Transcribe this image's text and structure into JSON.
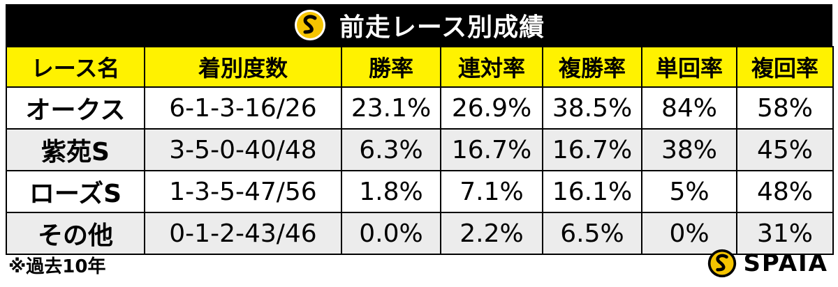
{
  "header": {
    "title": "前走レース別成績",
    "logo_icon": "spaia-logo-icon"
  },
  "table": {
    "columns": [
      "レース名",
      "着別度数",
      "勝率",
      "連対率",
      "複勝率",
      "単回率",
      "複回率"
    ],
    "rows": [
      [
        "オークス",
        "6-1-3-16/26",
        "23.1%",
        "26.9%",
        "38.5%",
        "84%",
        "58%"
      ],
      [
        "紫苑S",
        "3-5-0-40/48",
        "6.3%",
        "16.7%",
        "16.7%",
        "38%",
        "45%"
      ],
      [
        "ローズS",
        "1-3-5-47/56",
        "1.8%",
        "7.1%",
        "16.1%",
        "5%",
        "48%"
      ],
      [
        "その他",
        "0-1-2-43/46",
        "0.0%",
        "2.2%",
        "6.5%",
        "0%",
        "31%"
      ]
    ]
  },
  "footnote": "※過去10年",
  "brand": {
    "name": "SPAIA",
    "logo_icon": "spaia-logo-icon"
  },
  "colors": {
    "header_bg": "#000000",
    "column_header_bg": "#fff200",
    "stripe_bg": "#ececec",
    "logo_yellow": "#f5c400"
  }
}
